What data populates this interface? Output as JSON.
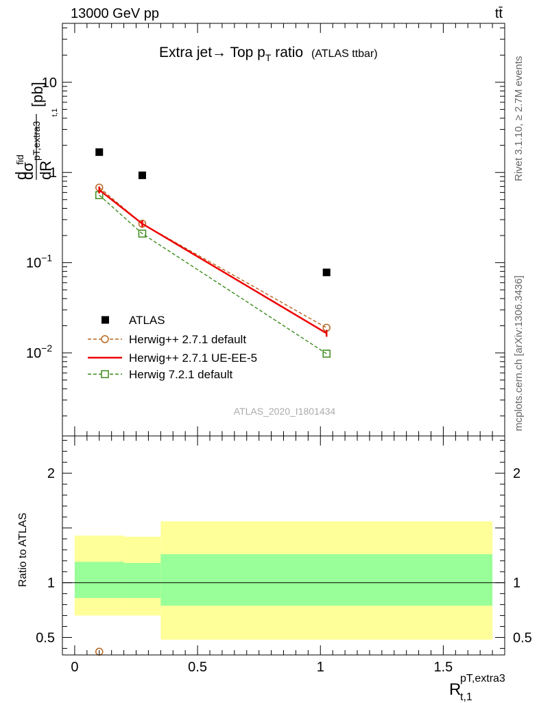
{
  "header": {
    "left": "13000 GeV pp",
    "right": "tt̄"
  },
  "side_label_top": "Rivet 3.1.10, ≥ 2.7M events",
  "side_label_bottom": "mcplots.cern.ch [arXiv:1306.3436]",
  "watermark": "ATLAS_2020_I1801434",
  "colors": {
    "atlas": "#000000",
    "herwig_default": "#b5651d",
    "herwig_ueee5": "#ee0000",
    "herwig721": "#3a8a1a",
    "band_outer": "#ffff99",
    "band_inner": "#99ff99"
  },
  "chart_data": [
    {
      "type": "line",
      "panel": "main",
      "title": "Extra jet → Top p_T ratio (ATLAS ttbar)",
      "title_parts": {
        "main": "Extra jet",
        "arrow": "→",
        "mid": " Top p",
        "sub": "T",
        "post": " ratio",
        "small": "(ATLAS ttbar)"
      },
      "ylabel": "dσ^fid / dR^pT,extra3_t,1 [pb]",
      "ylabel_parts": {
        "d1": "d",
        "sigma": "dσ",
        "fid": "fid",
        "dR": "dR",
        "sup": "pT,extra3",
        "sub": "t,1",
        "unit": "[pb]"
      },
      "yscale": "log",
      "ylim": [
        0.0012,
        45
      ],
      "xlim": [
        -0.05,
        1.75
      ],
      "yticks": [
        {
          "v": 10,
          "label": "10"
        },
        {
          "v": 1,
          "label": "1"
        },
        {
          "v": 0.1,
          "label": "10",
          "sup": "−1"
        },
        {
          "v": 0.01,
          "label": "10",
          "sup": "−2"
        }
      ],
      "legend_position": "lower-left",
      "series": [
        {
          "name": "ATLAS",
          "marker": "square-filled",
          "line": "none",
          "x": [
            0.1,
            0.275,
            1.025
          ],
          "y": [
            1.68,
            0.93,
            0.078
          ]
        },
        {
          "name": "Herwig++ 2.7.1 default",
          "marker": "circle-open",
          "line": "dashed",
          "x": [
            0.1,
            0.275,
            1.025
          ],
          "y": [
            0.68,
            0.27,
            0.019
          ]
        },
        {
          "name": "Herwig++ 2.7.1 UE-EE-5",
          "marker": "none",
          "line": "solid",
          "x": [
            0.1,
            0.275,
            1.025
          ],
          "y": [
            0.64,
            0.27,
            0.0165
          ]
        },
        {
          "name": "Herwig 7.2.1 default",
          "marker": "square-open",
          "line": "dashed",
          "x": [
            0.1,
            0.275,
            1.025
          ],
          "y": [
            0.56,
            0.21,
            0.0098
          ]
        }
      ]
    },
    {
      "type": "area",
      "panel": "ratio",
      "ylabel": "Ratio to ATLAS",
      "xlabel": "R^pT,extra3_t,1",
      "xlabel_parts": {
        "base": "R",
        "sup": "pT,extra3",
        "sub": "t,1"
      },
      "ylim": [
        0.34,
        2.34
      ],
      "xlim": [
        -0.05,
        1.75
      ],
      "yticks": [
        0.5,
        1,
        2
      ],
      "ytick_labels": [
        "0.5",
        "1",
        "2"
      ],
      "xticks": [
        0,
        0.5,
        1,
        1.5
      ],
      "xtick_labels": [
        "0",
        "0.5",
        "1",
        "1.5"
      ],
      "reference_line": 1,
      "bands": [
        {
          "x0": 0.0,
          "x1": 0.2,
          "outer": [
            0.7,
            1.43
          ],
          "inner": [
            0.86,
            1.19
          ]
        },
        {
          "x0": 0.2,
          "x1": 0.35,
          "outer": [
            0.7,
            1.42
          ],
          "inner": [
            0.86,
            1.18
          ]
        },
        {
          "x0": 0.35,
          "x1": 1.7,
          "outer": [
            0.48,
            1.56
          ],
          "inner": [
            0.79,
            1.26
          ]
        }
      ],
      "series": [
        {
          "name": "Herwig++ 2.7.1 default",
          "marker": "circle-open",
          "x": [
            0.1
          ],
          "y": [
            0.37
          ]
        }
      ]
    }
  ]
}
